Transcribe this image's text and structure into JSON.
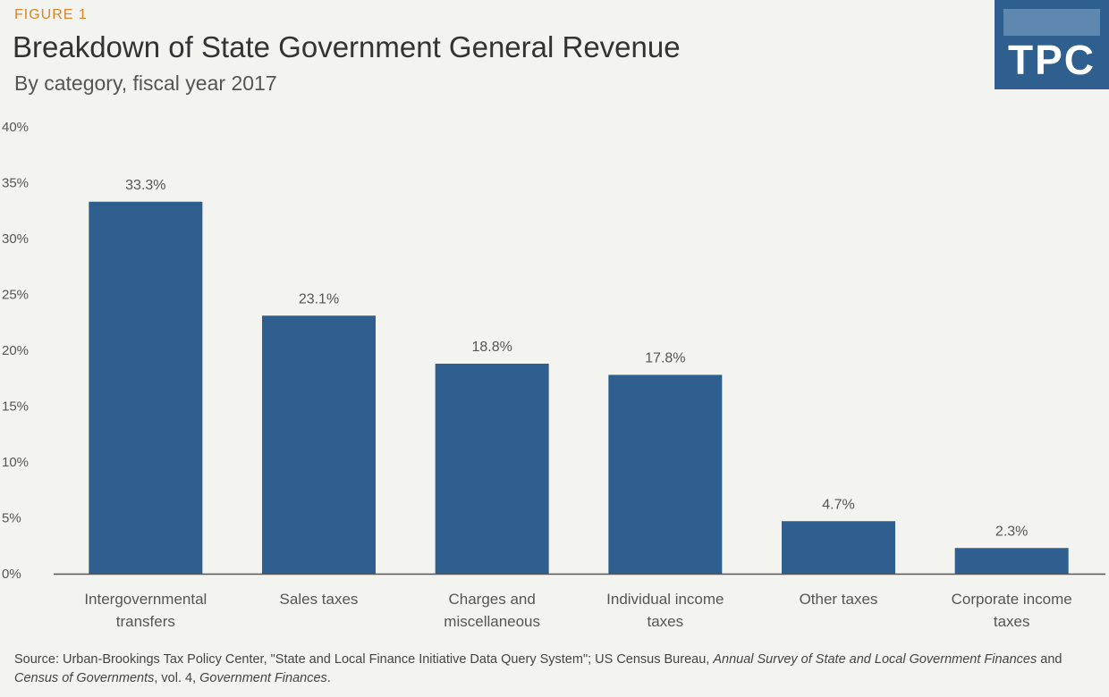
{
  "figure": {
    "label": "FIGURE 1",
    "title": "Breakdown of State Government General Revenue",
    "subtitle": "By category, fiscal year 2017",
    "logo_text": "TPC"
  },
  "source": {
    "prefix": "Source: Urban-Brookings Tax Policy Center, \"State and Local Finance Initiative Data Query System\"; US Census Bureau, ",
    "italic1": "Annual Survey of State and Local Government Finances",
    "middle": " and ",
    "italic2": "Census of Governments",
    "suffix": ", vol. 4, ",
    "italic3": "Government Finances",
    "end": "."
  },
  "colors": {
    "bar": "#2f5f8f",
    "axis": "#555555",
    "accent": "#d9842a"
  },
  "chart_data": {
    "type": "bar",
    "title": "Breakdown of State Government General Revenue",
    "subtitle": "By category, fiscal year 2017",
    "categories": [
      [
        "Intergovernmental",
        "transfers"
      ],
      [
        "Sales taxes"
      ],
      [
        "Charges and",
        "miscellaneous"
      ],
      [
        "Individual income",
        "taxes"
      ],
      [
        "Other taxes"
      ],
      [
        "Corporate income",
        "taxes"
      ]
    ],
    "values": [
      33.3,
      23.1,
      18.8,
      17.8,
      4.7,
      2.3
    ],
    "value_labels": [
      "33.3%",
      "23.1%",
      "18.8%",
      "17.8%",
      "4.7%",
      "2.3%"
    ],
    "y_ticks": [
      0,
      5,
      10,
      15,
      20,
      25,
      30,
      35,
      40
    ],
    "y_tick_labels": [
      "0%",
      "5%",
      "10%",
      "15%",
      "20%",
      "25%",
      "30%",
      "35%",
      "40%"
    ],
    "ylim": [
      0,
      40
    ],
    "grid": false,
    "legend": "none"
  }
}
